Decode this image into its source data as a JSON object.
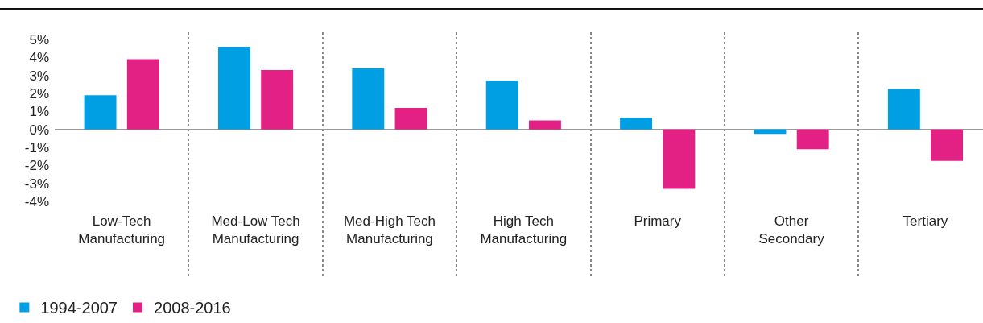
{
  "chart_data": {
    "type": "bar",
    "categories": [
      "Low-Tech Manufacturing",
      "Med-Low Tech Manufacturing",
      "Med-High Tech Manufacturing",
      "High Tech Manufacturing",
      "Primary",
      "Other Secondary",
      "Tertiary"
    ],
    "series": [
      {
        "name": "1994-2007",
        "color": "#009fe3",
        "values": [
          1.9,
          4.6,
          3.4,
          2.7,
          0.65,
          -0.25,
          2.25
        ]
      },
      {
        "name": "2008-2016",
        "color": "#e32185",
        "values": [
          3.9,
          3.3,
          1.2,
          0.5,
          -3.3,
          -1.1,
          -1.75
        ]
      }
    ],
    "ylim": [
      -8.2,
      5.4
    ],
    "yticks": [
      {
        "value": -4,
        "label": "-4%"
      },
      {
        "value": -3,
        "label": "-3%"
      },
      {
        "value": -2,
        "label": "-2%"
      },
      {
        "value": -1,
        "label": "-1%"
      },
      {
        "value": 0,
        "label": "0%"
      },
      {
        "value": 1,
        "label": "1%"
      },
      {
        "value": 2,
        "label": "2%"
      },
      {
        "value": 3,
        "label": "3%"
      },
      {
        "value": 4,
        "label": "4%"
      },
      {
        "value": 5,
        "label": "5%"
      }
    ],
    "grid": "x",
    "legend": "bottom left"
  }
}
